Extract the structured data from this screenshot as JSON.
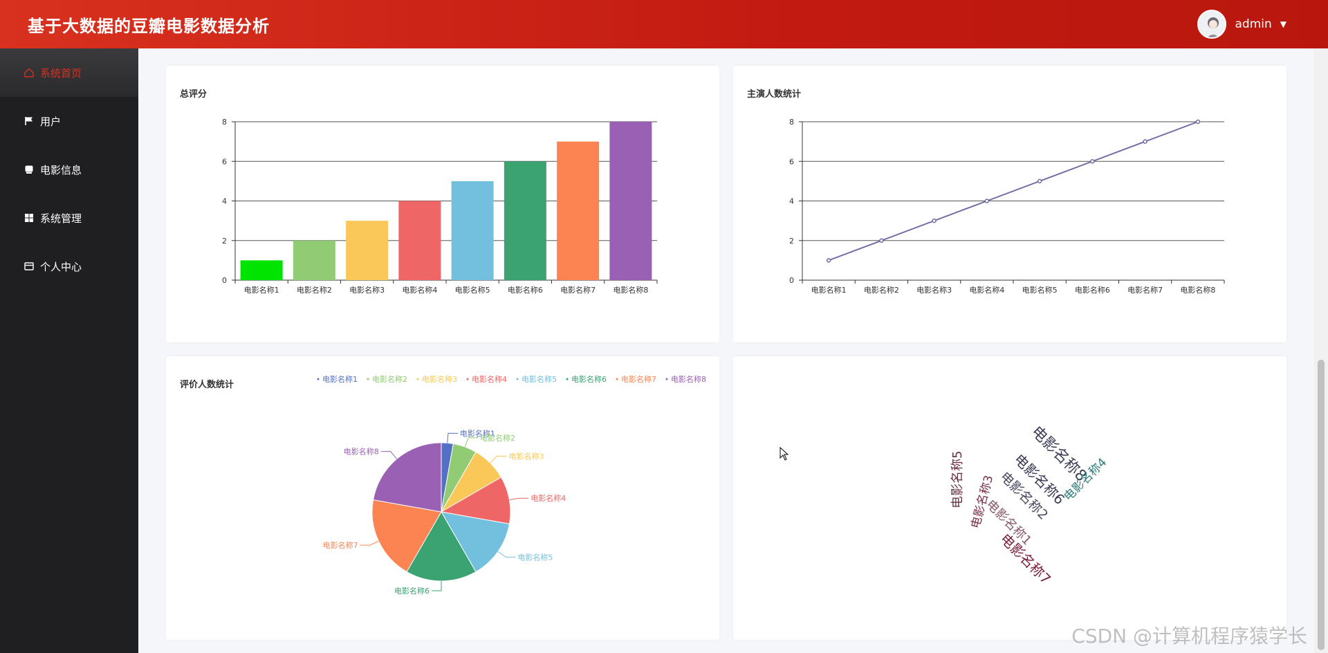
{
  "header": {
    "title": "基于大数据的豆瓣电影数据分析",
    "username": "admin"
  },
  "sidebar": {
    "items": [
      {
        "label": "系统首页",
        "icon": "home-icon",
        "active": true
      },
      {
        "label": "用户",
        "icon": "flag-icon"
      },
      {
        "label": "电影信息",
        "icon": "film-icon"
      },
      {
        "label": "系统管理",
        "icon": "grid-icon"
      },
      {
        "label": "个人中心",
        "icon": "card-icon"
      }
    ]
  },
  "panels": {
    "rating_title": "总评分",
    "cast_title": "主演人数统计",
    "reviews_title": "评价人数统计"
  },
  "colors": {
    "accent": "#d8311f",
    "palette": [
      "#5470c6",
      "#91cc75",
      "#fac858",
      "#ee6666",
      "#73c0de",
      "#3ba272",
      "#fc8452",
      "#9a60b4"
    ],
    "bar_first": "#00e400",
    "line": "#6e6aa6"
  },
  "chart_data": [
    {
      "type": "bar",
      "title": "总评分",
      "categories": [
        "电影名称1",
        "电影名称2",
        "电影名称3",
        "电影名称4",
        "电影名称5",
        "电影名称6",
        "电影名称7",
        "电影名称8"
      ],
      "values": [
        1,
        2,
        3,
        4,
        5,
        6,
        7,
        8
      ],
      "ylim": [
        0,
        8
      ],
      "yticks": [
        0,
        2,
        4,
        6,
        8
      ],
      "grid": true
    },
    {
      "type": "line",
      "title": "主演人数统计",
      "categories": [
        "电影名称1",
        "电影名称2",
        "电影名称3",
        "电影名称4",
        "电影名称5",
        "电影名称6",
        "电影名称7",
        "电影名称8"
      ],
      "values": [
        1,
        2,
        3,
        4,
        5,
        6,
        7,
        8
      ],
      "ylim": [
        0,
        8
      ],
      "yticks": [
        0,
        2,
        4,
        6,
        8
      ],
      "grid": true
    },
    {
      "type": "pie",
      "title": "评价人数统计",
      "labels": [
        "电影名称1",
        "电影名称2",
        "电影名称3",
        "电影名称4",
        "电影名称5",
        "电影名称6",
        "电影名称7",
        "电影名称8"
      ],
      "values": [
        1,
        2,
        3,
        4,
        5,
        6,
        7,
        8
      ],
      "legend": "top"
    }
  ],
  "wordcloud": {
    "words": [
      "电影名称8",
      "电影名称6",
      "电影名称2",
      "电影名称1",
      "电影名称4",
      "电影名称5",
      "电影名称3",
      "电影名称7"
    ]
  },
  "watermark": "CSDN @计算机程序猿学长"
}
